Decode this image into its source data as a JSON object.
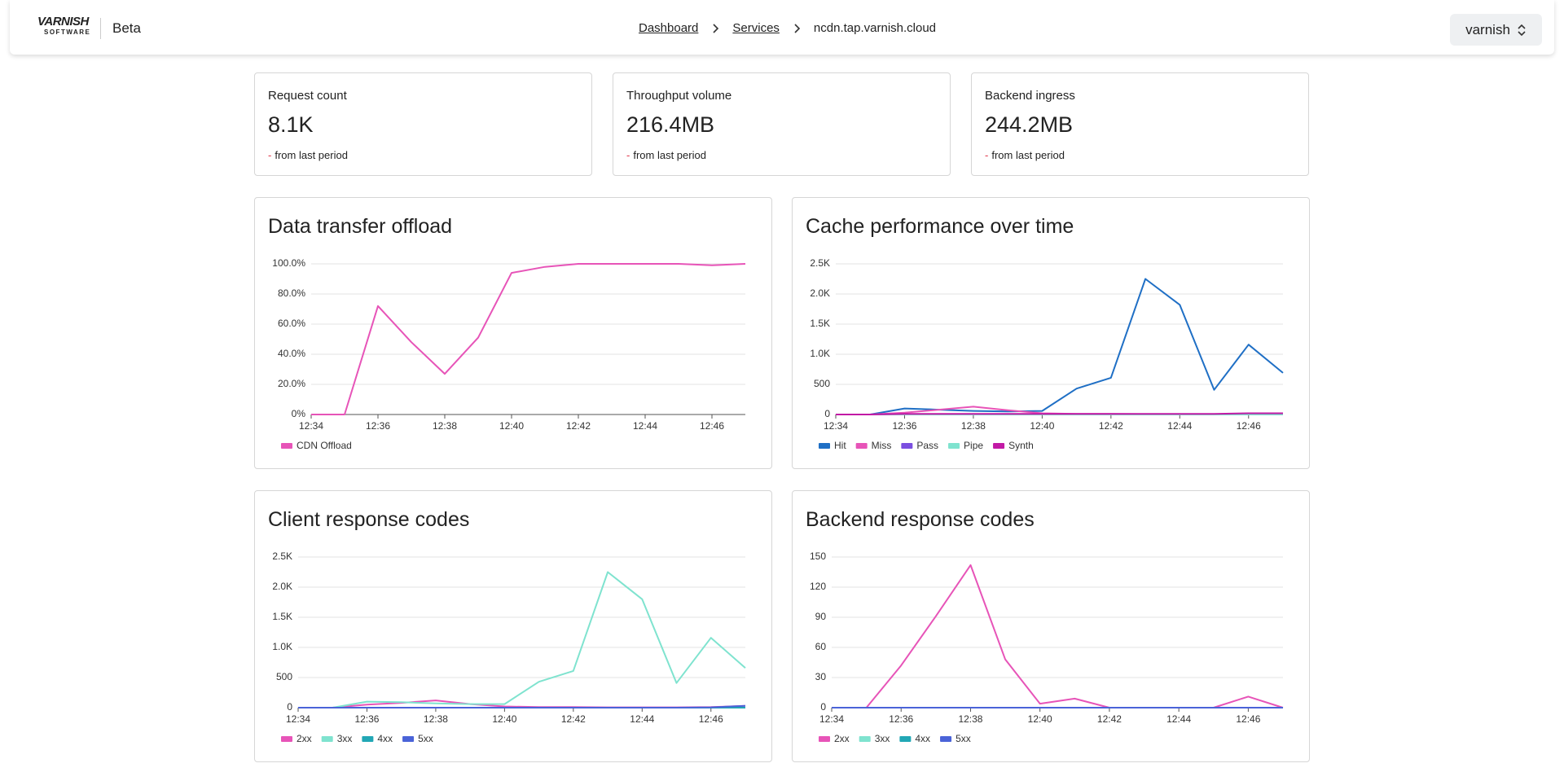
{
  "header": {
    "logo": "VARNISH",
    "logo_sub": "SOFTWARE",
    "badge": "Beta",
    "breadcrumbs": [
      "Dashboard",
      "Services",
      "ncdn.tap.varnish.cloud"
    ],
    "account": "varnish"
  },
  "stats": [
    {
      "label": "Request count",
      "value": "8.1K",
      "change": "-",
      "note": "from last period"
    },
    {
      "label": "Throughput volume",
      "value": "216.4MB",
      "change": "-",
      "note": "from last period"
    },
    {
      "label": "Backend ingress",
      "value": "244.2MB",
      "change": "-",
      "note": "from last period"
    }
  ],
  "chart_data": [
    {
      "type": "line",
      "title": "Data transfer offload",
      "categories": [
        "12:34",
        null,
        "12:36",
        null,
        "12:38",
        null,
        "12:40",
        null,
        "12:42",
        null,
        "12:44",
        null,
        "12:46",
        null
      ],
      "ylim": [
        0,
        100
      ],
      "yticks": [
        {
          "value": 0,
          "label": "0%"
        },
        {
          "value": 20,
          "label": "20.0%"
        },
        {
          "value": 40,
          "label": "40.0%"
        },
        {
          "value": 60,
          "label": "60.0%"
        },
        {
          "value": 80,
          "label": "80.0%"
        },
        {
          "value": 100,
          "label": "100.0%"
        }
      ],
      "grid": true,
      "series": [
        {
          "name": "CDN Offload",
          "color": "#e754b8",
          "values": [
            0,
            0,
            72,
            48,
            27,
            51,
            94,
            98,
            100,
            100,
            100,
            100,
            99,
            100
          ]
        }
      ]
    },
    {
      "type": "line",
      "title": "Cache performance over time",
      "categories": [
        "12:34",
        null,
        "12:36",
        null,
        "12:38",
        null,
        "12:40",
        null,
        "12:42",
        null,
        "12:44",
        null,
        "12:46",
        null
      ],
      "ylim": [
        0,
        2500
      ],
      "yticks": [
        0,
        500,
        {
          "value": 1000,
          "label": "1.0K"
        },
        {
          "value": 1500,
          "label": "1.5K"
        },
        {
          "value": 2000,
          "label": "2.0K"
        },
        {
          "value": 2500,
          "label": "2.5K"
        }
      ],
      "grid": true,
      "series": [
        {
          "name": "Hit",
          "color": "#1f6fc5",
          "values": [
            0,
            0,
            100,
            80,
            60,
            50,
            60,
            430,
            610,
            2250,
            1820,
            410,
            1160,
            690
          ]
        },
        {
          "name": "Miss",
          "color": "#e754b8",
          "values": [
            0,
            0,
            30,
            80,
            130,
            70,
            20,
            10,
            10,
            5,
            5,
            5,
            10,
            10
          ]
        },
        {
          "name": "Pass",
          "color": "#7b4fe0",
          "values": [
            0,
            0,
            5,
            5,
            5,
            5,
            5,
            5,
            5,
            5,
            5,
            5,
            5,
            5
          ]
        },
        {
          "name": "Pipe",
          "color": "#7fe3cf",
          "values": [
            0,
            0,
            0,
            0,
            0,
            0,
            0,
            0,
            0,
            0,
            0,
            0,
            0,
            0
          ]
        },
        {
          "name": "Synth",
          "color": "#c21aa5",
          "values": [
            0,
            0,
            10,
            10,
            10,
            10,
            10,
            10,
            10,
            10,
            10,
            10,
            20,
            20
          ]
        }
      ]
    },
    {
      "type": "line",
      "title": "Client response codes",
      "categories": [
        "12:34",
        null,
        "12:36",
        null,
        "12:38",
        null,
        "12:40",
        null,
        "12:42",
        null,
        "12:44",
        null,
        "12:46",
        null
      ],
      "ylim": [
        0,
        2500
      ],
      "yticks": [
        0,
        500,
        {
          "value": 1000,
          "label": "1.0K"
        },
        {
          "value": 1500,
          "label": "1.5K"
        },
        {
          "value": 2000,
          "label": "2.0K"
        },
        {
          "value": 2500,
          "label": "2.5K"
        }
      ],
      "grid": true,
      "series": [
        {
          "name": "2xx",
          "color": "#e754b8",
          "values": [
            0,
            0,
            50,
            80,
            120,
            60,
            20,
            10,
            10,
            5,
            5,
            5,
            10,
            30
          ]
        },
        {
          "name": "3xx",
          "color": "#7fe3cf",
          "values": [
            0,
            0,
            100,
            90,
            70,
            60,
            60,
            430,
            610,
            2250,
            1800,
            410,
            1160,
            660
          ]
        },
        {
          "name": "4xx",
          "color": "#22a7b5",
          "values": [
            0,
            0,
            0,
            0,
            0,
            0,
            0,
            0,
            0,
            0,
            0,
            0,
            0,
            0
          ]
        },
        {
          "name": "5xx",
          "color": "#4a63d8",
          "values": [
            0,
            0,
            0,
            0,
            0,
            0,
            0,
            0,
            0,
            0,
            0,
            0,
            5,
            30
          ]
        }
      ]
    },
    {
      "type": "line",
      "title": "Backend response codes",
      "categories": [
        "12:34",
        null,
        "12:36",
        null,
        "12:38",
        null,
        "12:40",
        null,
        "12:42",
        null,
        "12:44",
        null,
        "12:46",
        null
      ],
      "ylim": [
        0,
        150
      ],
      "yticks": [
        0,
        30,
        60,
        90,
        120,
        150
      ],
      "grid": true,
      "series": [
        {
          "name": "2xx",
          "color": "#e754b8",
          "values": [
            0,
            0,
            42,
            91,
            142,
            48,
            4,
            9,
            0,
            0,
            0,
            0,
            11,
            0
          ]
        },
        {
          "name": "3xx",
          "color": "#7fe3cf",
          "values": [
            0,
            0,
            0,
            0,
            0,
            0,
            0,
            0,
            0,
            0,
            0,
            0,
            0,
            0
          ]
        },
        {
          "name": "4xx",
          "color": "#22a7b5",
          "values": [
            0,
            0,
            0,
            0,
            0,
            0,
            0,
            0,
            0,
            0,
            0,
            0,
            0,
            0
          ]
        },
        {
          "name": "5xx",
          "color": "#4a63d8",
          "values": [
            0,
            0,
            0,
            0,
            0,
            0,
            0,
            0,
            0,
            0,
            0,
            0,
            0,
            0
          ]
        }
      ]
    }
  ]
}
